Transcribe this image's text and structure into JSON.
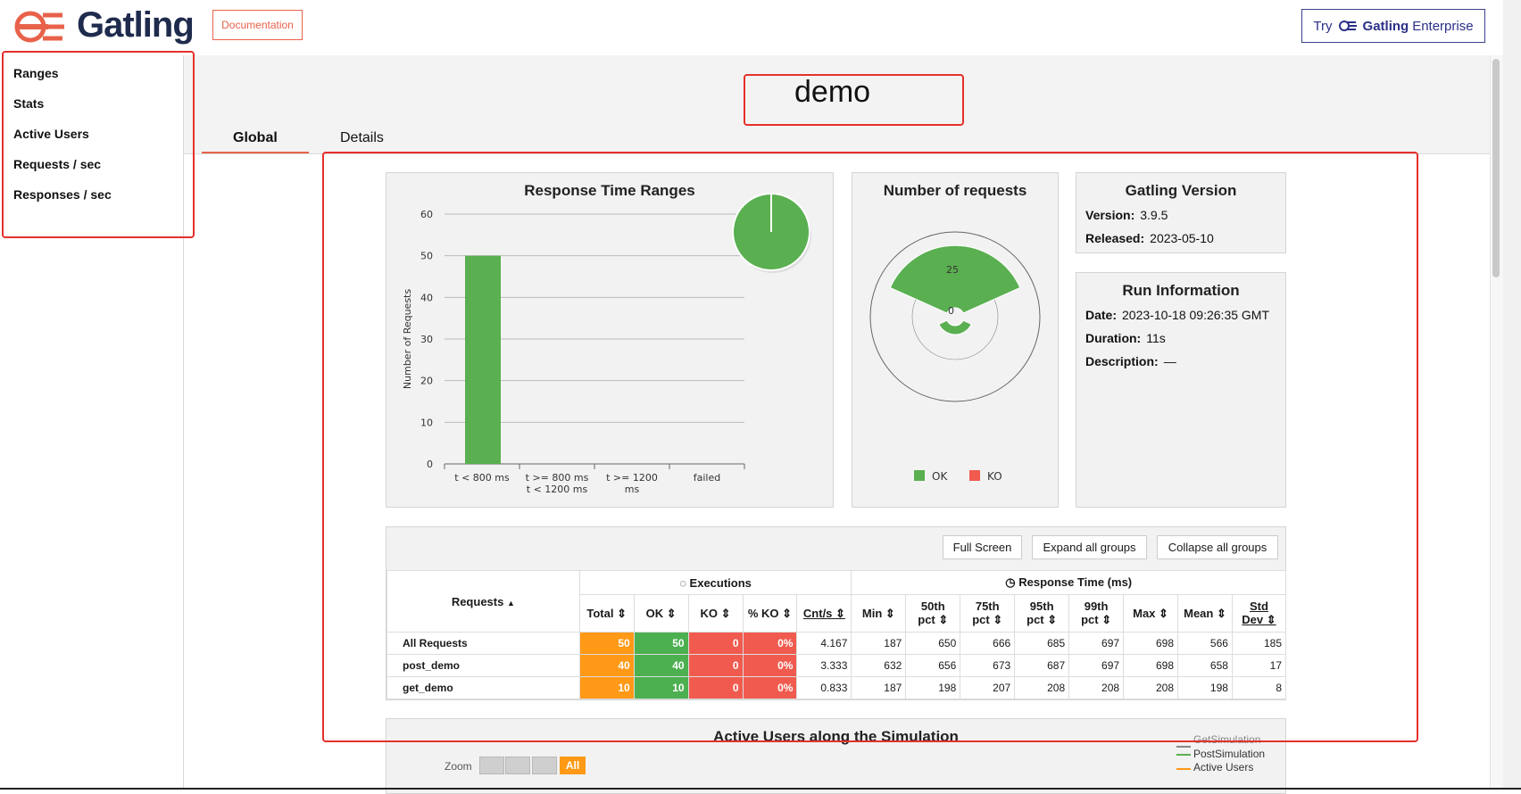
{
  "header": {
    "logo_text": "Gatling",
    "doc_button": "Documentation",
    "enterprise": {
      "try": "Try",
      "brand": "Gatling",
      "product": "Enterprise"
    }
  },
  "sidebar": {
    "items": [
      {
        "label": "Ranges"
      },
      {
        "label": "Stats"
      },
      {
        "label": "Active Users"
      },
      {
        "label": "Requests / sec"
      },
      {
        "label": "Responses / sec"
      }
    ]
  },
  "simulation_title": "demo",
  "tabs": [
    {
      "label": "Global",
      "active": true
    },
    {
      "label": "Details",
      "active": false
    }
  ],
  "panels": {
    "ranges_title": "Response Time Ranges",
    "requests_title": "Number of requests",
    "version": {
      "title": "Gatling Version",
      "version_label": "Version:",
      "version_value": "3.9.5",
      "released_label": "Released:",
      "released_value": "2023-05-10"
    },
    "run": {
      "title": "Run Information",
      "date_label": "Date:",
      "date_value": "2023-10-18 09:26:35 GMT",
      "duration_label": "Duration:",
      "duration_value": "11s",
      "description_label": "Description:",
      "description_value": "—"
    }
  },
  "chart_data": [
    {
      "type": "bar",
      "title": "Response Time Ranges",
      "ylabel": "Number of Requests",
      "ylim": [
        0,
        60
      ],
      "yticks": [
        0,
        10,
        20,
        30,
        40,
        50,
        60
      ],
      "categories": [
        "t < 800 ms",
        "t >= 800 ms t < 1200 ms",
        "t >= 1200 ms",
        "failed"
      ],
      "category_lines": [
        [
          "t < 800 ms"
        ],
        [
          "t >= 800 ms",
          "t < 1200 ms"
        ],
        [
          "t >= 1200",
          "ms"
        ],
        [
          "failed"
        ]
      ],
      "values": [
        50,
        0,
        0,
        0
      ],
      "bar_color": "#5aaf50",
      "pie": {
        "values": [
          50,
          0,
          0,
          0
        ],
        "color": "#5aaf50"
      }
    },
    {
      "type": "pie",
      "title": "Number of requests",
      "subtype": "polar",
      "radial_ticks": [
        0,
        25
      ],
      "series": [
        {
          "name": "OK",
          "value": 50,
          "color": "#5aaf50"
        },
        {
          "name": "KO",
          "value": 0,
          "color": "#f15b4f"
        }
      ],
      "legend_position": "bottom"
    },
    {
      "type": "line",
      "title": "Active Users along the Simulation",
      "legend": [
        {
          "name": "GetSimulation",
          "color": "#888888"
        },
        {
          "name": "PostSimulation",
          "color": "#5aaf50"
        },
        {
          "name": "Active Users",
          "color": "#ff9916"
        }
      ],
      "zoom_label": "Zoom",
      "zoom_all": "All"
    }
  ],
  "table": {
    "buttons": {
      "full_screen": "Full Screen",
      "expand": "Expand all groups",
      "collapse": "Collapse all groups"
    },
    "group_headers": {
      "requests": "Requests",
      "executions": "Executions",
      "response_time": "Response Time (ms)"
    },
    "columns": [
      "Total",
      "OK",
      "KO",
      "% KO",
      "Cnt/s",
      "Min",
      "50th pct",
      "75th pct",
      "95th pct",
      "99th pct",
      "Max",
      "Mean",
      "Std Dev"
    ],
    "rows": [
      {
        "name": "All Requests",
        "values": [
          "50",
          "50",
          "0",
          "0%",
          "4.167",
          "187",
          "650",
          "666",
          "685",
          "697",
          "698",
          "566",
          "185"
        ]
      },
      {
        "name": "post_demo",
        "values": [
          "40",
          "40",
          "0",
          "0%",
          "3.333",
          "632",
          "656",
          "673",
          "687",
          "697",
          "698",
          "658",
          "17"
        ]
      },
      {
        "name": "get_demo",
        "values": [
          "10",
          "10",
          "0",
          "0%",
          "0.833",
          "187",
          "198",
          "207",
          "208",
          "208",
          "208",
          "198",
          "8"
        ]
      }
    ]
  },
  "colors": {
    "accent": "#e8624a",
    "ok": "#4caf50",
    "ko": "#f15b4f",
    "total": "#ff9916",
    "annotation": "#e5302a"
  }
}
